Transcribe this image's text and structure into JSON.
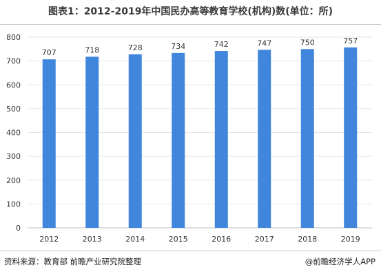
{
  "page": {
    "title": "图表1：2012-2019年中国民办高等教育学校(机构)数(单位：所)",
    "source": "资料来源：教育部 前瞻产业研究院整理",
    "credit": "@前瞻经济学人APP"
  },
  "chart_data": {
    "type": "bar",
    "title": "图表1：2012-2019年中国民办高等教育学校(机构)数(单位：所)",
    "categories": [
      "2012",
      "2013",
      "2014",
      "2015",
      "2016",
      "2017",
      "2018",
      "2019"
    ],
    "values": [
      707,
      718,
      728,
      734,
      742,
      747,
      750,
      757
    ],
    "ylim": [
      0,
      800
    ],
    "yticks": [
      0,
      100,
      200,
      300,
      400,
      500,
      600,
      700,
      800
    ],
    "xlabel": "",
    "ylabel": "",
    "grid": true,
    "data_labels": true,
    "bar_color": "#3f86dc"
  }
}
